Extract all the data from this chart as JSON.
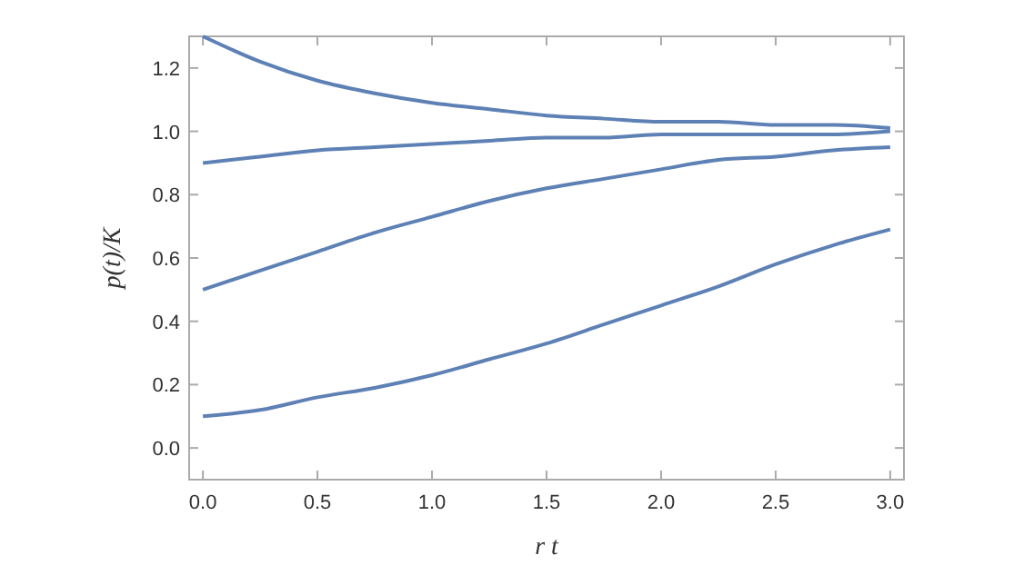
{
  "chart_data": {
    "type": "line",
    "xlabel": "r t",
    "ylabel": "p(t)/K",
    "xlim": [
      -0.06,
      3.06
    ],
    "ylim": [
      -0.1,
      1.3
    ],
    "xticks": [
      {
        "value": 0,
        "label": "0.0"
      },
      0.5,
      {
        "value": 1,
        "label": "1.0"
      },
      1.5,
      {
        "value": 2,
        "label": "2.0"
      },
      2.5,
      {
        "value": 3,
        "label": "3.0"
      }
    ],
    "yticks": [
      {
        "value": 0,
        "label": "0.0"
      },
      0.2,
      0.4,
      0.6,
      0.8,
      {
        "value": 1,
        "label": "1.0"
      },
      1.2
    ],
    "x": [
      0,
      0.25,
      0.5,
      0.75,
      1,
      1.25,
      1.5,
      1.75,
      2,
      2.25,
      2.5,
      2.75,
      3
    ],
    "grid": false,
    "marker": "none",
    "line_style": "solid",
    "series": [
      {
        "color": "#5e81b5",
        "values": [
          1.3,
          1.22,
          1.16,
          1.12,
          1.09,
          1.07,
          1.05,
          1.04,
          1.03,
          1.03,
          1.02,
          1.02,
          1.01
        ]
      },
      {
        "color": "#5e81b5",
        "values": [
          0.9,
          0.92,
          0.94,
          0.95,
          0.96,
          0.97,
          0.98,
          0.98,
          0.99,
          0.99,
          0.99,
          0.99,
          1.0
        ]
      },
      {
        "color": "#5e81b5",
        "values": [
          0.5,
          0.56,
          0.62,
          0.68,
          0.73,
          0.78,
          0.82,
          0.85,
          0.88,
          0.91,
          0.92,
          0.94,
          0.95
        ]
      },
      {
        "color": "#5e81b5",
        "values": [
          0.1,
          0.12,
          0.16,
          0.19,
          0.23,
          0.28,
          0.33,
          0.39,
          0.45,
          0.51,
          0.58,
          0.64,
          0.69
        ]
      }
    ]
  }
}
